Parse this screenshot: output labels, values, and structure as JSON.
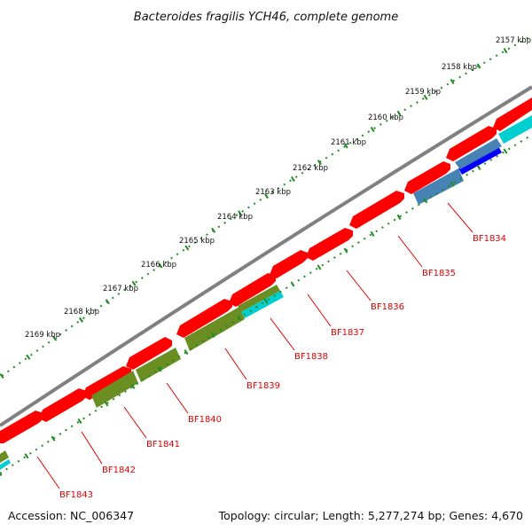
{
  "title": "Bacteroides fragilis YCH46, complete genome",
  "footer": {
    "accession": "Accession: NC_006347",
    "summary": "Topology: circular; Length: 5,277,274 bp; Genes: 4,670"
  },
  "colors": {
    "backbone": "#808080",
    "cds_forward": "#ff0000",
    "cds_reverse_olive": "#6b8e23",
    "cds_reverse_steel": "#4682b4",
    "cds_reverse_blue": "#0000ff",
    "cds_reverse_cyan": "#00ced1",
    "ticks": "#228b22",
    "gene_label": "#e00000"
  },
  "scale_labels": [
    "2157 kbp",
    "2158 kbp",
    "2159 kbp",
    "2160 kbp",
    "2161 kbp",
    "2162 kbp",
    "2163 kbp",
    "2164 kbp",
    "2165 kbp",
    "2166 kbp",
    "2167 kbp",
    "2168 kbp",
    "2169 kbp"
  ],
  "gene_labels": [
    "BF1834",
    "BF1835",
    "BF1836",
    "BF1837",
    "BF1838",
    "BF1839",
    "BF1840",
    "BF1841",
    "BF1842",
    "BF1843"
  ]
}
